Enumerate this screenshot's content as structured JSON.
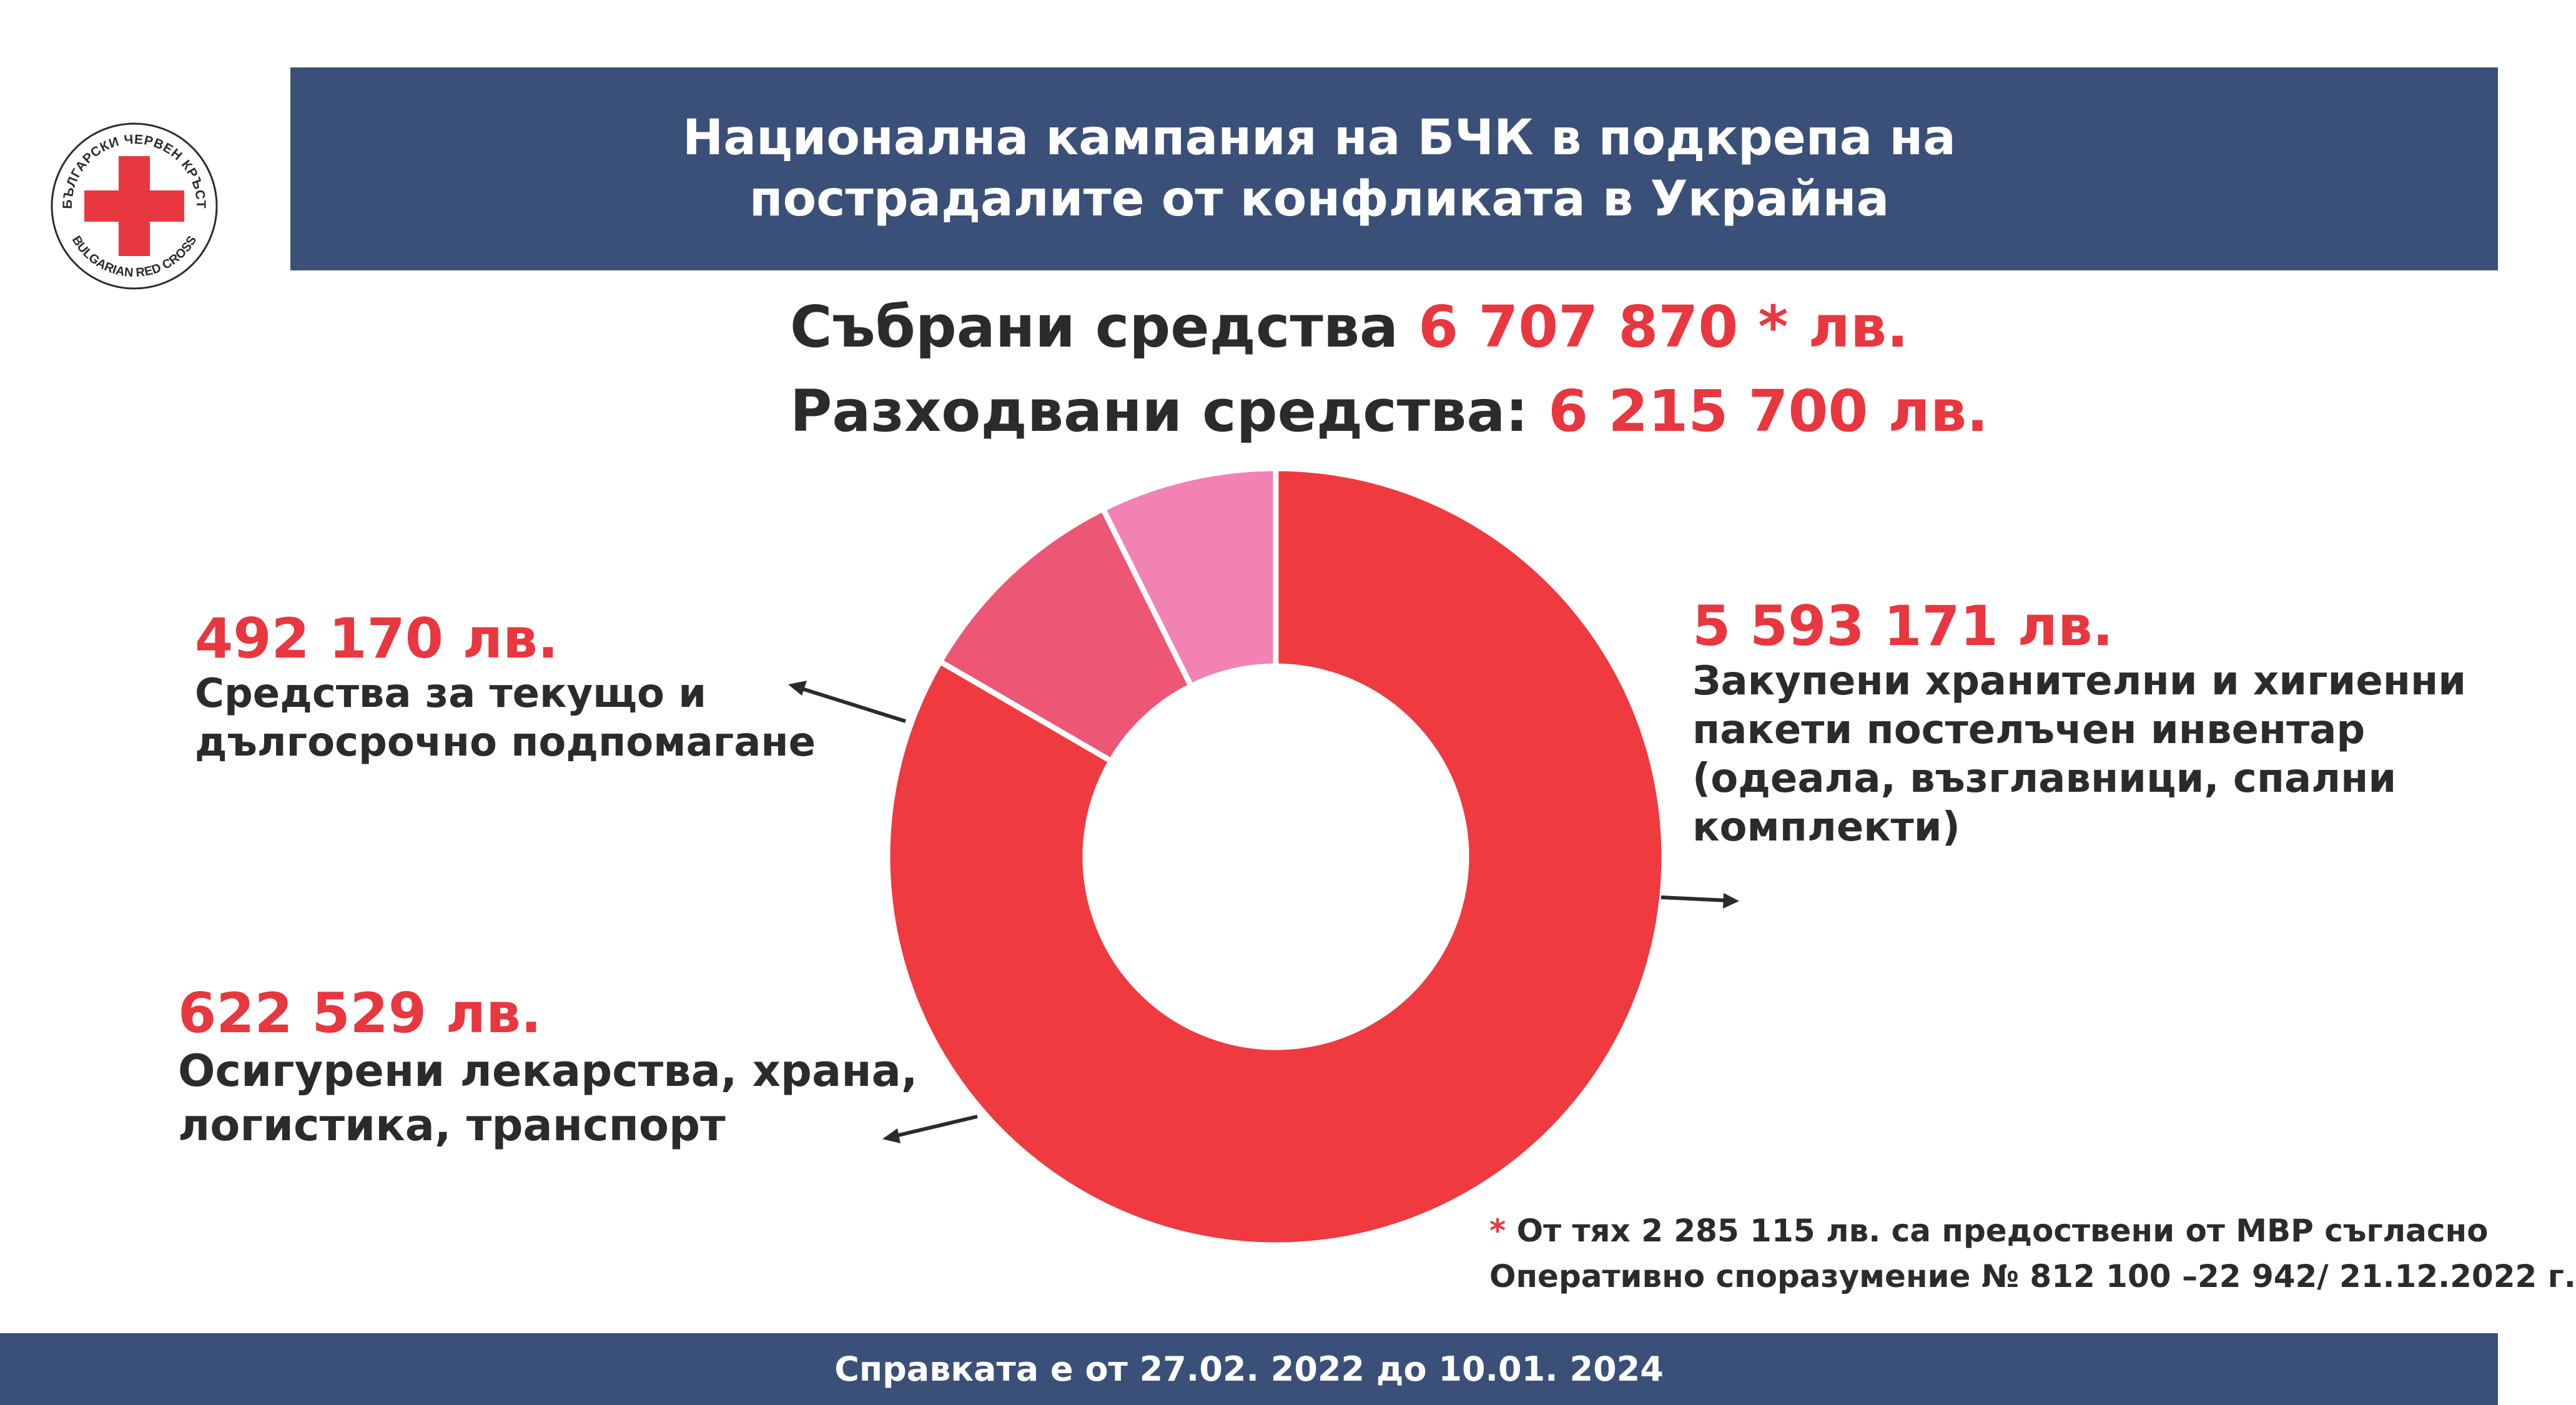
{
  "colors": {
    "navy": "#3a5079",
    "accent_red": "#e8373f",
    "slice_red": "#ef3a40",
    "slice_pink_dark": "#ee5676",
    "slice_pink_light": "#f282b4"
  },
  "logo": {
    "text_top": "БЪЛГАРСКИ ЧЕРВЕН КРЪСТ",
    "text_bottom": "BULGARIAN RED CROSS",
    "icon": "red-cross-icon"
  },
  "header": {
    "line1": "Национална кампания на  БЧК  в подкрепа на",
    "line2": "пострадалите от конфликата в Украйна"
  },
  "summary": {
    "collected_label": "Събрани средства",
    "collected_value": "6 707 870 * лв.",
    "spent_label": "Разходвани средства:",
    "spent_value": "6 215 700  лв."
  },
  "chart_data": {
    "type": "pie",
    "title": "",
    "slices": [
      {
        "amount_text": "5 593 171 лв.",
        "value": 5593171,
        "desc_lines": [
          "Закупени хранителни и хигиенни",
          "пакети постелъчен инвентар",
          "(одеала, възглавници, спални",
          "комплекти)"
        ],
        "color": "#ef3a40"
      },
      {
        "amount_text": "622 529 лв.",
        "value": 622529,
        "desc_lines": [
          "Осигурени лекарства, храна,",
          "логистика, транспорт"
        ],
        "color": "#ee5676"
      },
      {
        "amount_text": "492 170 лв.",
        "value": 492170,
        "desc_lines": [
          "Средства за текущо и",
          "дългосрочно  подпомагане"
        ],
        "color": "#f282b4"
      }
    ]
  },
  "footnote": {
    "star": "*",
    "line1": " От тях 2 285 115 лв. са предоствени от МВР съгласно",
    "line2": "Оперативно споразумение № 812 100 –22 942/ 21.12.2022 г."
  },
  "footer": {
    "text": "Справката е от 27.02. 2022 до  10.01. 2024"
  }
}
